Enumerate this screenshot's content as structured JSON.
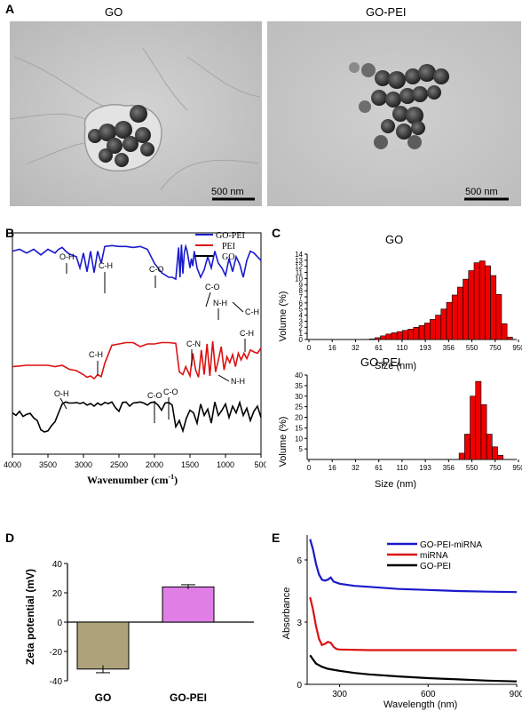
{
  "panels": {
    "A": {
      "label": "A",
      "left_title": "GO",
      "right_title": "GO-PEI",
      "scale_left": "500 nm",
      "scale_right": "500 nm"
    },
    "B": {
      "label": "B",
      "xlabel": "Wavenumber (cm",
      "xlabel_sup": "-1",
      "xlabel_end": ")",
      "legend": [
        "GO-PEI",
        "PEI",
        "GO"
      ],
      "annotations_gopei": [
        "O-H",
        "C-H",
        "C-O",
        "C-O",
        "N-H",
        "C-H"
      ],
      "annotations_pei": [
        "C-H",
        "C-N",
        "C-H",
        "N-H"
      ],
      "annotations_go": [
        "O-H",
        "C-O",
        "C-O"
      ]
    },
    "C": {
      "label": "C",
      "go_title": "GO",
      "gopei_title": "GO-PEI",
      "ylabel": "Volume (%)",
      "xlabel": "Size (nm)"
    },
    "D": {
      "label": "D",
      "ylabel": "Zeta potential (mV)"
    },
    "E": {
      "label": "E",
      "ylabel": "Absorbance",
      "xlabel": "Wavelength (nm)",
      "legend": [
        "GO-PEI-miRNA",
        "miRNA",
        "GO-PEI"
      ]
    }
  },
  "colors": {
    "blue": "#1a1acc",
    "red": "#dd1111",
    "black": "#000000",
    "bar_red": "#ee0000",
    "go_bar": "#aea27a",
    "gopei_bar": "#e07ee6"
  },
  "chart_data": [
    {
      "type": "line",
      "title": "",
      "xlabel": "Wavenumber (cm-1)",
      "ylabel": "",
      "xlim": [
        4000,
        500
      ],
      "x_ticks": [
        4000,
        3500,
        3000,
        2500,
        2000,
        1500,
        1000,
        500
      ],
      "series": [
        {
          "name": "GO-PEI",
          "color": "#1a1acc",
          "x": [
            4000,
            3900,
            3800,
            3700,
            3600,
            3500,
            3400,
            3350,
            3300,
            3250,
            3200,
            3100,
            3050,
            3000,
            2950,
            2900,
            2850,
            2800,
            2750,
            2700,
            2600,
            2500,
            2400,
            2300,
            2200,
            2100,
            2000,
            1900,
            1800,
            1750,
            1700,
            1660,
            1640,
            1620,
            1600,
            1580,
            1560,
            1540,
            1500,
            1480,
            1460,
            1440,
            1400,
            1350,
            1300,
            1250,
            1200,
            1150,
            1100,
            1050,
            1000,
            950,
            900,
            850,
            800,
            750,
            700,
            650,
            600,
            550,
            500
          ],
          "y": [
            88,
            90,
            86,
            90,
            84,
            90,
            86,
            90,
            92,
            88,
            85,
            82,
            70,
            86,
            66,
            88,
            65,
            88,
            75,
            93,
            94,
            93,
            93,
            92,
            93,
            90,
            75,
            65,
            60,
            60,
            58,
            92,
            60,
            95,
            64,
            86,
            93,
            88,
            70,
            80,
            72,
            88,
            70,
            60,
            68,
            82,
            70,
            88,
            75,
            70,
            62,
            80,
            66,
            82,
            74,
            60,
            78,
            88,
            86,
            82,
            78
          ]
        },
        {
          "name": "PEI",
          "color": "#dd1111",
          "x": [
            4000,
            3900,
            3800,
            3700,
            3600,
            3500,
            3400,
            3300,
            3200,
            3100,
            3000,
            2950,
            2900,
            2850,
            2800,
            2750,
            2700,
            2600,
            2500,
            2400,
            2300,
            2200,
            2100,
            2000,
            1900,
            1800,
            1700,
            1650,
            1600,
            1560,
            1500,
            1460,
            1420,
            1380,
            1340,
            1300,
            1260,
            1220,
            1180,
            1140,
            1100,
            1060,
            1020,
            980,
            940,
            900,
            860,
            820,
            780,
            740,
            700,
            650,
            600,
            550,
            500
          ],
          "y": [
            50,
            51,
            52,
            52,
            52,
            52,
            50,
            52,
            46,
            44,
            38,
            34,
            36,
            32,
            38,
            35,
            55,
            82,
            84,
            86,
            86,
            80,
            84,
            84,
            86,
            86,
            85,
            42,
            38,
            50,
            36,
            70,
            45,
            34,
            75,
            38,
            84,
            36,
            88,
            42,
            60,
            80,
            45,
            65,
            56,
            68,
            50,
            70,
            60,
            70,
            62,
            75,
            72,
            70,
            78
          ]
        },
        {
          "name": "GO",
          "color": "#000000",
          "x": [
            4000,
            3950,
            3900,
            3850,
            3800,
            3750,
            3700,
            3650,
            3600,
            3550,
            3500,
            3450,
            3400,
            3350,
            3300,
            3250,
            3200,
            3150,
            3100,
            3050,
            3000,
            2950,
            2900,
            2850,
            2800,
            2750,
            2700,
            2650,
            2600,
            2550,
            2500,
            2450,
            2400,
            2350,
            2300,
            2250,
            2200,
            2150,
            2100,
            2050,
            2000,
            1950,
            1900,
            1850,
            1800,
            1750,
            1700,
            1650,
            1600,
            1550,
            1500,
            1450,
            1400,
            1350,
            1300,
            1250,
            1200,
            1150,
            1100,
            1050,
            1000,
            950,
            900,
            850,
            800,
            750,
            700,
            650,
            600,
            550,
            500
          ],
          "y": [
            75,
            70,
            78,
            68,
            72,
            74,
            65,
            60,
            42,
            38,
            40,
            50,
            58,
            75,
            92,
            96,
            94,
            94,
            95,
            93,
            95,
            90,
            93,
            88,
            94,
            90,
            95,
            93,
            96,
            85,
            78,
            95,
            96,
            88,
            94,
            95,
            96,
            94,
            90,
            95,
            96,
            90,
            80,
            94,
            95,
            90,
            48,
            60,
            40,
            65,
            80,
            75,
            55,
            92,
            70,
            82,
            55,
            96,
            70,
            80,
            92,
            66,
            88,
            75,
            95,
            70,
            84,
            60,
            78,
            88,
            66
          ]
        }
      ]
    },
    {
      "type": "bar",
      "title": "GO",
      "xlabel": "Size (nm)",
      "ylabel": "Volume (%)",
      "ylim": [
        0,
        14
      ],
      "tick_labels": [
        "0",
        "16",
        "32",
        "61",
        "110",
        "193",
        "356",
        "550",
        "750",
        "950"
      ],
      "values": [
        0.1,
        0.3,
        0.6,
        0.9,
        1.1,
        1.3,
        1.5,
        1.7,
        2.0,
        2.3,
        2.7,
        3.3,
        4.0,
        5.0,
        6.1,
        7.3,
        8.6,
        9.9,
        11.3,
        12.6,
        12.9,
        12.1,
        10.5,
        7.4,
        2.6,
        0.4
      ]
    },
    {
      "type": "bar",
      "title": "GO-PEI",
      "xlabel": "Size (nm)",
      "ylabel": "Volume (%)",
      "ylim": [
        0,
        40
      ],
      "tick_labels": [
        "0",
        "16",
        "32",
        "61",
        "110",
        "193",
        "356",
        "550",
        "750",
        "950"
      ],
      "values": [
        3,
        12,
        30,
        37,
        26,
        12,
        6,
        2
      ]
    },
    {
      "type": "bar",
      "title": "",
      "xlabel": "",
      "ylabel": "Zeta potential (mV)",
      "ylim": [
        -40,
        40
      ],
      "y_ticks": [
        -40,
        -20,
        0,
        20,
        40
      ],
      "categories": [
        "GO",
        "GO-PEI"
      ],
      "values": [
        -32,
        24
      ],
      "errors": [
        2.5,
        1.5
      ]
    },
    {
      "type": "line",
      "title": "",
      "xlabel": "Wavelength (nm)",
      "ylabel": "Absorbance",
      "xlim": [
        190,
        900
      ],
      "ylim": [
        0,
        7.2
      ],
      "x_ticks": [
        300,
        600,
        900
      ],
      "y_ticks": [
        0,
        3,
        6
      ],
      "series": [
        {
          "name": "GO-PEI-miRNA",
          "color": "#1a1acc",
          "x": [
            200,
            210,
            220,
            230,
            240,
            250,
            260,
            270,
            280,
            300,
            350,
            400,
            500,
            600,
            700,
            800,
            900
          ],
          "y": [
            7.0,
            6.5,
            5.8,
            5.3,
            5.05,
            5.0,
            5.05,
            5.15,
            4.95,
            4.85,
            4.75,
            4.7,
            4.6,
            4.55,
            4.5,
            4.47,
            4.45
          ]
        },
        {
          "name": "miRNA",
          "color": "#dd1111",
          "x": [
            200,
            210,
            220,
            230,
            240,
            250,
            260,
            270,
            280,
            290,
            300,
            400,
            500,
            600,
            700,
            800,
            900
          ],
          "y": [
            4.2,
            3.6,
            2.8,
            2.2,
            1.9,
            1.95,
            2.05,
            2.0,
            1.8,
            1.7,
            1.68,
            1.65,
            1.65,
            1.65,
            1.65,
            1.65,
            1.65
          ]
        },
        {
          "name": "GO-PEI",
          "color": "#000000",
          "x": [
            200,
            210,
            220,
            240,
            260,
            300,
            350,
            400,
            500,
            600,
            700,
            800,
            900
          ],
          "y": [
            1.4,
            1.2,
            1.0,
            0.85,
            0.75,
            0.65,
            0.55,
            0.48,
            0.38,
            0.3,
            0.24,
            0.18,
            0.14
          ]
        }
      ]
    }
  ]
}
